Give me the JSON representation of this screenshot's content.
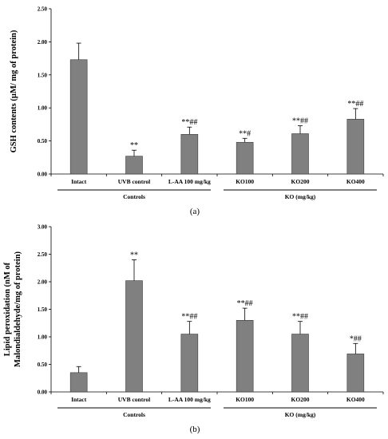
{
  "chart_data": [
    {
      "type": "bar",
      "panel_label": "(a)",
      "ylabel": "GSH contents (µM/ mg of protein)",
      "ylim": [
        0,
        2.5
      ],
      "yticks": [
        "0.00",
        "0.50",
        "1.00",
        "1.50",
        "2.00",
        "2.50"
      ],
      "yticks_values": [
        0,
        0.5,
        1.0,
        1.5,
        2.0,
        2.5
      ],
      "categories": [
        "Intact",
        "UVB control",
        "L-AA 100 mg/kg",
        "KO100",
        "KO200",
        "KO400"
      ],
      "values": [
        1.73,
        0.27,
        0.6,
        0.48,
        0.61,
        0.83
      ],
      "errors": [
        0.25,
        0.09,
        0.11,
        0.06,
        0.12,
        0.16
      ],
      "significance": [
        "",
        "**",
        "**##",
        "**#",
        "**##",
        "**##"
      ],
      "groups": [
        {
          "label": "Controls",
          "from": 0,
          "to": 2
        },
        {
          "label": "KO (mg/kg)",
          "from": 3,
          "to": 5
        }
      ]
    },
    {
      "type": "bar",
      "panel_label": "(b)",
      "ylabel_line1": "Lipid peroxidation (nM of",
      "ylabel_line2": "Malondialdehyde/mg of protein)",
      "ylim": [
        0,
        3.0
      ],
      "yticks": [
        "0.00",
        "0.50",
        "1.00",
        "1.50",
        "2.00",
        "2.50",
        "3.00"
      ],
      "yticks_values": [
        0,
        0.5,
        1.0,
        1.5,
        2.0,
        2.5,
        3.0
      ],
      "categories": [
        "Intact",
        "UVB control",
        "L-AA 100 mg/kg",
        "KO100",
        "KO200",
        "KO400"
      ],
      "values": [
        0.35,
        2.02,
        1.05,
        1.3,
        1.05,
        0.69
      ],
      "errors": [
        0.11,
        0.38,
        0.23,
        0.22,
        0.23,
        0.19
      ],
      "significance": [
        "",
        "**",
        "**##",
        "**##",
        "**##",
        "*##"
      ],
      "groups": [
        {
          "label": "Controls",
          "from": 0,
          "to": 2
        },
        {
          "label": "KO (mg/kg)",
          "from": 3,
          "to": 5
        }
      ]
    }
  ],
  "style": {
    "bar_color": "#808080",
    "bar_stroke": "#3a3a3a",
    "axis_color": "#000000"
  }
}
